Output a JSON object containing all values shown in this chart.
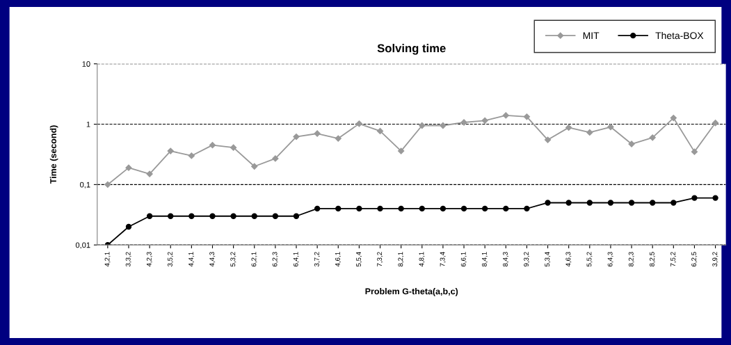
{
  "chart_data": {
    "type": "line",
    "title": "Solving time",
    "xlabel": "Problem G-theta(a,b,c)",
    "ylabel": "Time (second)",
    "categories": [
      "4,2,1",
      "3,3,2",
      "4,2,3",
      "3,5,2",
      "4,4,1",
      "4,4,3",
      "5,3,2",
      "6,2,1",
      "6,2,3",
      "6,4,1",
      "3,7,2",
      "4,6,1",
      "5,5,4",
      "7,3,2",
      "8,2,1",
      "4,8,1",
      "7,3,4",
      "6,6,1",
      "8,4,1",
      "8,4,3",
      "9,3,2",
      "5,3,4",
      "4,6,3",
      "5,5,2",
      "6,4,3",
      "8,2,3",
      "8,2,5",
      "7,5,2",
      "6,2,5",
      "3,9,2"
    ],
    "series": [
      {
        "name": "MIT",
        "color": "#999999",
        "marker": "diamond",
        "values": [
          0.1,
          0.19,
          0.15,
          0.36,
          0.3,
          0.45,
          0.41,
          0.2,
          0.27,
          0.62,
          0.7,
          0.58,
          1.02,
          0.77,
          0.36,
          0.95,
          0.95,
          1.07,
          1.15,
          1.4,
          1.33,
          0.55,
          0.88,
          0.73,
          0.9,
          0.47,
          0.6,
          1.27,
          0.35,
          1.05
        ]
      },
      {
        "name": "Theta-BOX",
        "color": "#000000",
        "marker": "circle",
        "values": [
          0.01,
          0.02,
          0.03,
          0.03,
          0.03,
          0.03,
          0.03,
          0.03,
          0.03,
          0.03,
          0.04,
          0.04,
          0.04,
          0.04,
          0.04,
          0.04,
          0.04,
          0.04,
          0.04,
          0.04,
          0.04,
          0.05,
          0.05,
          0.05,
          0.05,
          0.05,
          0.05,
          0.05,
          0.06,
          0.06
        ]
      }
    ],
    "log": true,
    "ylim": [
      0.01,
      10
    ],
    "yticks": [
      {
        "value": 0.01,
        "label": "0,01"
      },
      {
        "value": 0.1,
        "label": "0,1"
      },
      1,
      10
    ],
    "grid": "y",
    "legend": "top right",
    "line_style": "solid"
  }
}
